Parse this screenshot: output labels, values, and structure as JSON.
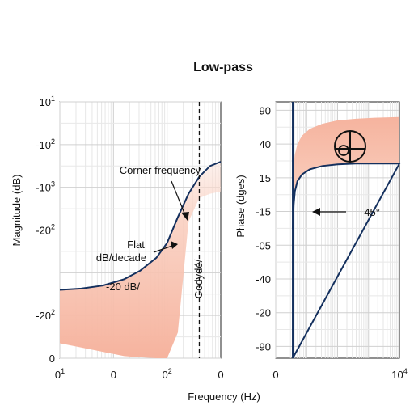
{
  "figure": {
    "title": "Low-pass",
    "xlabel": "Frequency (Hz)"
  },
  "chart_data": [
    {
      "type": "line",
      "panel": "magnitude",
      "title": "",
      "xlabel": "",
      "ylabel": "Magnitude (dB)",
      "grid": true,
      "x_ticks": [
        {
          "v": 0,
          "label": "0"
        },
        {
          "v": 1,
          "label": "0"
        },
        {
          "v": 2,
          "label": "0"
        },
        {
          "v": 3,
          "label": "0"
        }
      ],
      "x_ticks_sup": [
        "1",
        "",
        "2",
        ""
      ],
      "y_ticks": [
        {
          "pos": 0,
          "label": "0",
          "sup": ""
        },
        {
          "pos": 1,
          "label": "-20",
          "sup": "2"
        },
        {
          "pos": 3,
          "label": "-20",
          "sup": "2"
        },
        {
          "pos": 4,
          "label": "-10",
          "sup": "3"
        },
        {
          "pos": 5,
          "label": "-10",
          "sup": "2"
        },
        {
          "pos": 6,
          "label": "10",
          "sup": "1"
        }
      ],
      "series": [
        {
          "x": [
            0,
            0.4,
            0.8,
            1.2,
            1.5,
            1.8,
            2.0,
            2.2,
            2.4,
            2.6,
            2.8,
            3.0
          ],
          "y": [
            1.6,
            1.63,
            1.7,
            1.85,
            2.05,
            2.35,
            2.7,
            3.3,
            3.85,
            4.25,
            4.5,
            4.6
          ]
        }
      ],
      "band_lower": [
        0.35,
        0.25,
        0.15,
        0.05,
        0.02,
        0.0,
        0.0,
        0.6,
        3.2,
        3.75,
        3.85,
        3.9
      ],
      "vline_x": 2.6,
      "annotations": {
        "corner": "Corner frequency",
        "flat": [
          "Flat",
          "dB/decade"
        ],
        "slope": "-20 dB/",
        "rotated": "Codydé/"
      }
    },
    {
      "type": "line",
      "panel": "phase",
      "title": "",
      "xlabel": "",
      "ylabel": "Phase (dges)",
      "grid": true,
      "x_ticks": [
        {
          "v": 0,
          "label": "0",
          "sup": ""
        },
        {
          "v": 4,
          "label": "10",
          "sup": "4"
        }
      ],
      "y_ticks": [
        {
          "pos": 0,
          "label": "-90"
        },
        {
          "pos": 1,
          "label": "-20"
        },
        {
          "pos": 2,
          "label": "-40"
        },
        {
          "pos": 3,
          "label": "-05"
        },
        {
          "pos": 4,
          "label": "-15"
        },
        {
          "pos": 5,
          "label": "15"
        },
        {
          "pos": 6,
          "label": "40"
        },
        {
          "pos": 7,
          "label": "90"
        }
      ],
      "series": [
        {
          "x": [
            0.55,
            0.58,
            0.62,
            0.7,
            0.85,
            1.1,
            1.5,
            2.0,
            2.6,
            3.2,
            4.0
          ],
          "y": [
            3.5,
            4.2,
            4.6,
            4.9,
            5.1,
            5.25,
            5.35,
            5.4,
            5.42,
            5.42,
            5.42
          ]
        }
      ],
      "band_upper": [
        5.0,
        5.4,
        5.7,
        6.0,
        6.25,
        6.45,
        6.6,
        6.7,
        6.75,
        6.78,
        6.8
      ],
      "vline_x": 0.55,
      "annotations": {
        "minus45": "-45°"
      }
    }
  ]
}
